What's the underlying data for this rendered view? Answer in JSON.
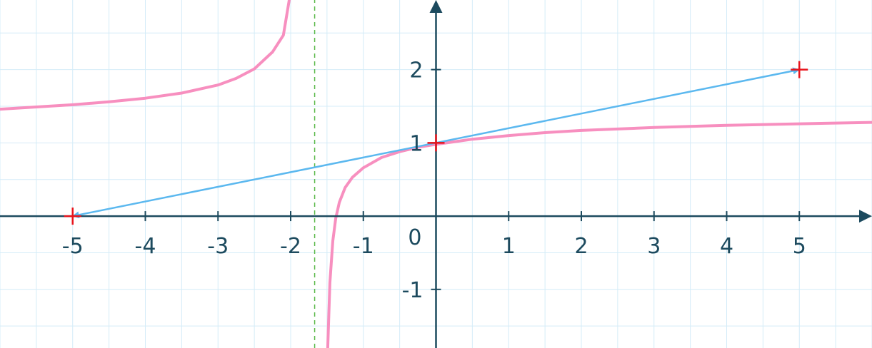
{
  "chart_data": {
    "type": "line",
    "title": "",
    "xlabel": "",
    "ylabel": "",
    "xlim": [
      -6,
      6
    ],
    "ylim": [
      -1.8,
      2.95
    ],
    "grid": true,
    "x_ticks": [
      {
        "value": -5,
        "label": "-5"
      },
      {
        "value": -4,
        "label": "-4"
      },
      {
        "value": -3,
        "label": "-3"
      },
      {
        "value": -2,
        "label": "-2"
      },
      {
        "value": -1,
        "label": "-1"
      },
      {
        "value": 1,
        "label": "1"
      },
      {
        "value": 2,
        "label": "2"
      },
      {
        "value": 3,
        "label": "3"
      },
      {
        "value": 4,
        "label": "4"
      },
      {
        "value": 5,
        "label": "5"
      }
    ],
    "y_ticks": [
      {
        "value": 2,
        "label": "2"
      },
      {
        "value": 1,
        "label": "1"
      },
      {
        "value": -1,
        "label": "-1"
      }
    ],
    "origin_label": "0",
    "series": [
      {
        "kind": "curve-branch",
        "x": [
          -6,
          -5.5,
          -5,
          -4.5,
          -4,
          -3.5,
          -3,
          -2.75,
          -2.5,
          -2.25,
          -2.1,
          -2.02
        ],
        "y": [
          1.46,
          1.49,
          1.52,
          1.56,
          1.61,
          1.68,
          1.79,
          1.88,
          2.01,
          2.24,
          2.47,
          2.95
        ]
      },
      {
        "kind": "curve-branch",
        "x": [
          -1.49,
          -1.46,
          -1.42,
          -1.38,
          -1.33,
          -1.25,
          -1.15,
          -1,
          -0.75,
          -0.5,
          -0.25,
          0,
          0.5,
          1,
          1.5,
          2,
          3,
          4,
          5,
          6
        ],
        "y": [
          -1.8,
          -0.91,
          -0.34,
          -0.03,
          0.19,
          0.39,
          0.53,
          0.66,
          0.8,
          0.88,
          0.94,
          0.98,
          1.05,
          1.1,
          1.14,
          1.17,
          1.21,
          1.24,
          1.26,
          1.28
        ]
      },
      {
        "kind": "asymptote",
        "x": [
          -1.67,
          -1.67
        ],
        "y": [
          -1.8,
          2.95
        ]
      },
      {
        "kind": "vector",
        "x": [
          0,
          5
        ],
        "y": [
          1,
          2
        ]
      },
      {
        "kind": "vector",
        "x": [
          0,
          -5
        ],
        "y": [
          1,
          0
        ]
      }
    ],
    "points": [
      {
        "x": 0,
        "y": 1
      },
      {
        "x": 5,
        "y": 2
      },
      {
        "x": -5,
        "y": 0
      }
    ],
    "colors": {
      "grid": "#d4ecf8",
      "axis": "#1c4a5e",
      "curve": "#f78fbf",
      "asymptote": "#5cba4b",
      "vector": "#5bb8ef",
      "points": "#e8141c",
      "text": "#1c4a5e"
    }
  }
}
